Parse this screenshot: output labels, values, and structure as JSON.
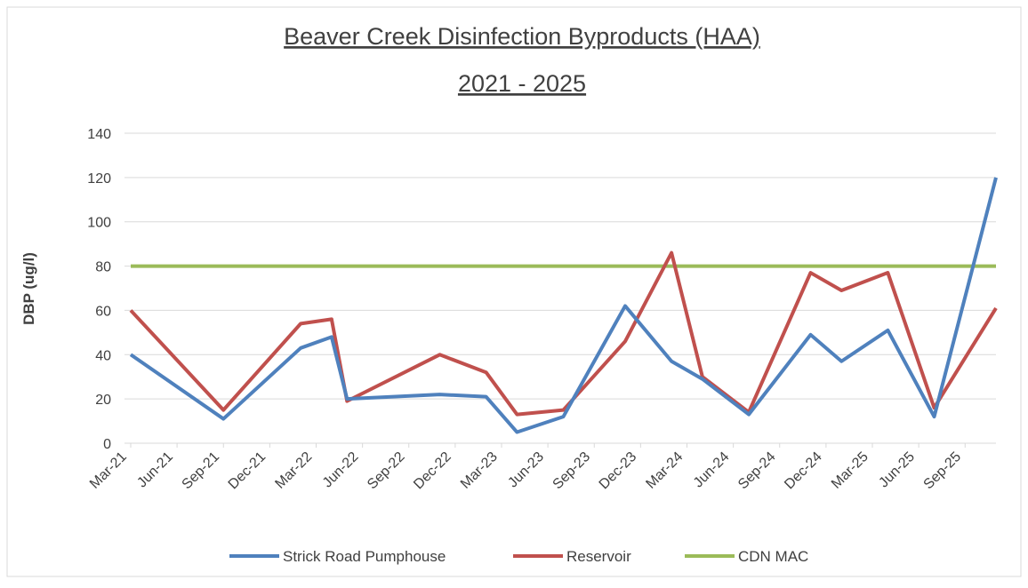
{
  "chart_data": {
    "type": "line",
    "title": [
      "Beaver Creek Disinfection Byproducts (HAA)",
      "2021 - 2025"
    ],
    "y_label": "DBP (ug/l)",
    "x": [
      "2021-03",
      "2021-09",
      "2022-02",
      "2022-04",
      "2022-05",
      "2022-11",
      "2023-02",
      "2023-04",
      "2023-07",
      "2023-11",
      "2024-02",
      "2024-04",
      "2024-07",
      "2024-11",
      "2025-01",
      "2025-04",
      "2025-07",
      "2025-11"
    ],
    "series": [
      {
        "name": "Strick Road Pumphouse",
        "color": "#4f81bd",
        "values": [
          40,
          11,
          43,
          48,
          20,
          22,
          21,
          5,
          12,
          62,
          37,
          29,
          13,
          49,
          37,
          51,
          12,
          120
        ]
      },
      {
        "name": "Reservoir",
        "color": "#c0504d",
        "values": [
          60,
          15,
          54,
          56,
          19,
          40,
          32,
          13,
          15,
          46,
          86,
          30,
          14,
          77,
          69,
          77,
          16,
          61
        ]
      },
      {
        "name": "CDN MAC",
        "color": "#9bbb59",
        "values": [
          80,
          80,
          80,
          80,
          80,
          80,
          80,
          80,
          80,
          80,
          80,
          80,
          80,
          80,
          80,
          80,
          80,
          80
        ]
      }
    ],
    "xlim": [
      "2021-03",
      "2025-11"
    ],
    "xticks": [
      {
        "value": "2021-03",
        "label": "Mar-21"
      },
      {
        "value": "2021-06",
        "label": "Jun-21"
      },
      {
        "value": "2021-09",
        "label": "Sep-21"
      },
      {
        "value": "2021-12",
        "label": "Dec-21"
      },
      {
        "value": "2022-03",
        "label": "Mar-22"
      },
      {
        "value": "2022-06",
        "label": "Jun-22"
      },
      {
        "value": "2022-09",
        "label": "Sep-22"
      },
      {
        "value": "2022-12",
        "label": "Dec-22"
      },
      {
        "value": "2023-03",
        "label": "Mar-23"
      },
      {
        "value": "2023-06",
        "label": "Jun-23"
      },
      {
        "value": "2023-09",
        "label": "Sep-23"
      },
      {
        "value": "2023-12",
        "label": "Dec-23"
      },
      {
        "value": "2024-03",
        "label": "Mar-24"
      },
      {
        "value": "2024-06",
        "label": "Jun-24"
      },
      {
        "value": "2024-09",
        "label": "Sep-24"
      },
      {
        "value": "2024-12",
        "label": "Dec-24"
      },
      {
        "value": "2025-03",
        "label": "Mar-25"
      },
      {
        "value": "2025-06",
        "label": "Jun-25"
      },
      {
        "value": "2025-09",
        "label": "Sep-25"
      }
    ],
    "ylim": [
      0,
      140
    ],
    "yticks": [
      0,
      20,
      40,
      60,
      80,
      100,
      120,
      140
    ],
    "grid": true,
    "legend": "bottom"
  }
}
